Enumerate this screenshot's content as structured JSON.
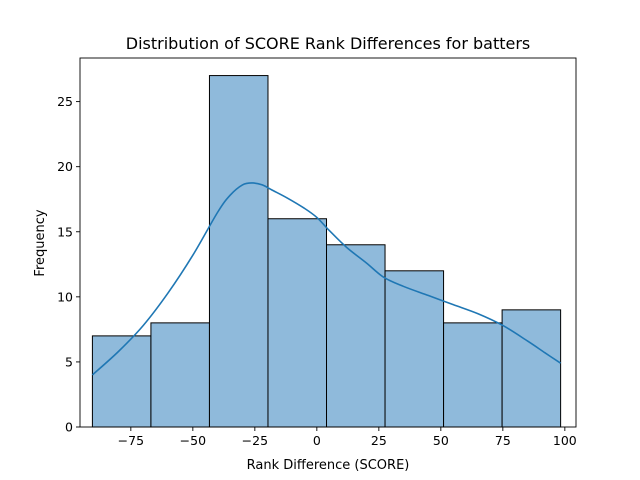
{
  "chart_data": {
    "type": "bar",
    "title": "Distribution of SCORE Rank Differences for batters",
    "xlabel": "Rank Difference (SCORE)",
    "ylabel": "Frequency",
    "xlim": [
      -95.5,
      104.5
    ],
    "ylim": [
      0,
      28.35
    ],
    "x_ticks": [
      -75,
      -50,
      -25,
      0,
      25,
      50,
      75,
      100
    ],
    "x_tick_labels": [
      "−75",
      "−50",
      "−25",
      "0",
      "25",
      "50",
      "75",
      "100"
    ],
    "y_ticks": [
      0,
      5,
      10,
      15,
      20,
      25
    ],
    "y_tick_labels": [
      "0",
      "5",
      "10",
      "15",
      "20",
      "25"
    ],
    "bins": [
      {
        "start": -90.5,
        "end": -66.9,
        "count": 7
      },
      {
        "start": -66.9,
        "end": -43.3,
        "count": 8
      },
      {
        "start": -43.3,
        "end": -19.7,
        "count": 27
      },
      {
        "start": -19.7,
        "end": 3.9,
        "count": 16
      },
      {
        "start": 3.9,
        "end": 27.5,
        "count": 14
      },
      {
        "start": 27.5,
        "end": 51.1,
        "count": 12
      },
      {
        "start": 51.1,
        "end": 74.7,
        "count": 8
      },
      {
        "start": 74.7,
        "end": 98.3,
        "count": 9
      }
    ],
    "kde": {
      "x": [
        -90.5,
        -80,
        -70,
        -60,
        -50,
        -40,
        -35,
        -30,
        -26,
        -22,
        -18,
        -12,
        -5,
        0,
        5,
        12,
        20,
        27,
        35,
        45,
        55,
        65,
        75,
        85,
        92,
        98.3
      ],
      "y": [
        4.0,
        5.8,
        7.8,
        10.3,
        13.2,
        16.5,
        17.8,
        18.6,
        18.75,
        18.6,
        18.2,
        17.6,
        16.8,
        16.1,
        15.1,
        13.8,
        12.6,
        11.5,
        10.8,
        10.1,
        9.4,
        8.7,
        7.8,
        6.6,
        5.7,
        4.9
      ]
    },
    "grid": false,
    "legend": "none",
    "colors": {
      "bar_fill": "#8fbadb",
      "bar_edge": "#000000",
      "kde_line": "#1f77b4"
    }
  }
}
